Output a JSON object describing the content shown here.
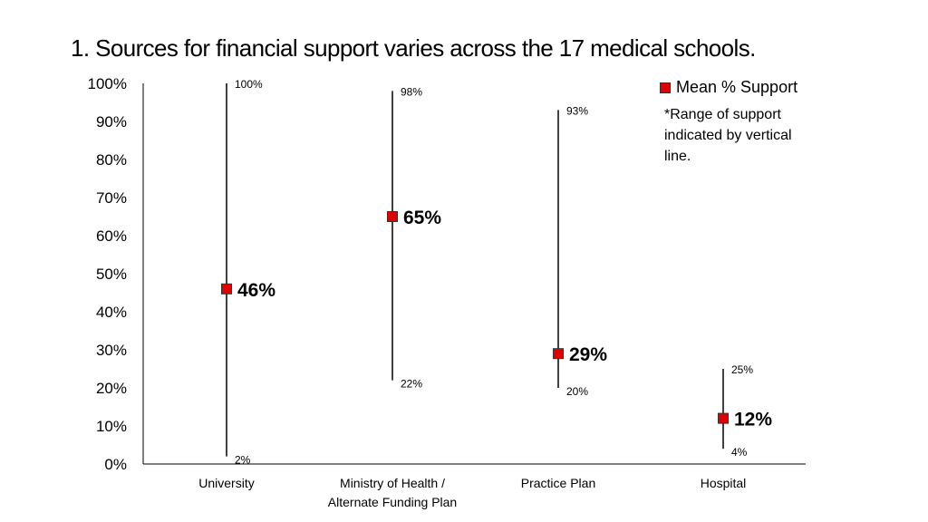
{
  "title": "1. Sources for financial support varies across the 17 medical schools.",
  "legend": {
    "label": "Mean % Support",
    "note": "*Range of support indicated by vertical line.",
    "color": "#e00000"
  },
  "chart_data": {
    "type": "scatter",
    "title": "1. Sources for financial support varies across the 17 medical schools.",
    "xlabel": "",
    "ylabel": "",
    "ylim": [
      0,
      100
    ],
    "yticks": [
      "0%",
      "10%",
      "20%",
      "30%",
      "40%",
      "50%",
      "60%",
      "70%",
      "80%",
      "90%",
      "100%"
    ],
    "categories": [
      [
        "University"
      ],
      [
        "Ministry of Health /",
        "Alternate Funding Plan"
      ],
      [
        "Practice Plan"
      ],
      [
        "Hospital"
      ]
    ],
    "series": [
      {
        "name": "Mean % Support",
        "values": [
          46,
          65,
          29,
          12
        ],
        "labels": [
          "46%",
          "65%",
          "29%",
          "12%"
        ]
      }
    ],
    "ranges": [
      {
        "min": 2,
        "max": 100,
        "min_label": "2%",
        "max_label": "100%"
      },
      {
        "min": 22,
        "max": 98,
        "min_label": "22%",
        "max_label": "98%"
      },
      {
        "min": 20,
        "max": 93,
        "min_label": "20%",
        "max_label": "93%"
      },
      {
        "min": 4,
        "max": 25,
        "min_label": "4%",
        "max_label": "25%"
      }
    ],
    "grid": false,
    "legend_position": "top-right"
  }
}
